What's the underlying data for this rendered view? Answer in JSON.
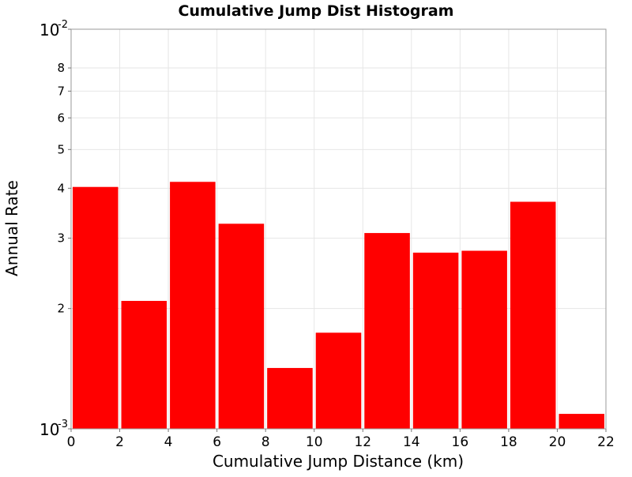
{
  "chart_data": {
    "type": "bar",
    "title": "Cumulative Jump Dist Histogram",
    "xlabel": "Cumulative Jump Distance (km)",
    "ylabel": "Annual Rate",
    "xlim": [
      0,
      22
    ],
    "ylim": [
      0.001,
      0.01
    ],
    "yscale": "log",
    "grid": true,
    "color": "#ff0000",
    "bin_width": 2,
    "x": [
      1,
      3,
      5,
      7,
      9,
      11,
      13,
      15,
      17,
      19,
      21
    ],
    "values": [
      0.00403,
      0.00209,
      0.00415,
      0.00326,
      0.00142,
      0.00174,
      0.00309,
      0.00276,
      0.00279,
      0.0037,
      0.00109
    ],
    "xticks": [
      "0",
      "2",
      "4",
      "6",
      "8",
      "10",
      "12",
      "14",
      "16",
      "18",
      "20",
      "22"
    ],
    "yticks_decade": [
      {
        "value": 0.001,
        "base": "10",
        "exp": "-3"
      },
      {
        "value": 0.01,
        "base": "10",
        "exp": "-2"
      }
    ],
    "yticks_minor": [
      {
        "value": 0.002,
        "label": "2"
      },
      {
        "value": 0.003,
        "label": "3"
      },
      {
        "value": 0.004,
        "label": "4"
      },
      {
        "value": 0.005,
        "label": "5"
      },
      {
        "value": 0.006,
        "label": "6"
      },
      {
        "value": 0.007,
        "label": "7"
      },
      {
        "value": 0.008,
        "label": "8"
      }
    ]
  }
}
